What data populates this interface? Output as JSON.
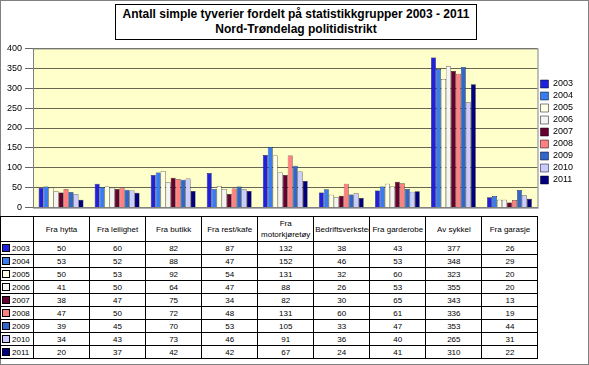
{
  "chart_data": {
    "type": "bar",
    "title": "Antall simple tyverier fordelt på statistikkgrupper 2003 - 2011",
    "subtitle": "Nord-Trøndelag politidistrikt",
    "categories": [
      "Fra hytta",
      "Fra leilighet",
      "Fra butikk",
      "Fra rest/kafe",
      "Fra motorkjøretøy",
      "Bedriftsverksted",
      "Fra garderobe",
      "Av sykkel",
      "Fra garasje"
    ],
    "series": [
      {
        "name": "2003",
        "color": "#2020e0",
        "values": [
          50,
          60,
          82,
          87,
          132,
          38,
          43,
          377,
          26
        ]
      },
      {
        "name": "2004",
        "color": "#3a7cf0",
        "values": [
          53,
          52,
          88,
          47,
          152,
          46,
          53,
          348,
          29
        ]
      },
      {
        "name": "2005",
        "color": "#ffffe6",
        "values": [
          50,
          53,
          92,
          54,
          131,
          32,
          60,
          323,
          20
        ]
      },
      {
        "name": "2006",
        "color": "#f4f4f4",
        "values": [
          41,
          50,
          64,
          47,
          88,
          26,
          53,
          355,
          20
        ]
      },
      {
        "name": "2007",
        "color": "#660033",
        "values": [
          38,
          47,
          75,
          34,
          82,
          30,
          65,
          343,
          13
        ]
      },
      {
        "name": "2008",
        "color": "#ff8080",
        "values": [
          47,
          50,
          72,
          48,
          131,
          60,
          61,
          336,
          19
        ]
      },
      {
        "name": "2009",
        "color": "#3366cc",
        "values": [
          39,
          45,
          70,
          53,
          105,
          33,
          47,
          353,
          44
        ]
      },
      {
        "name": "2010",
        "color": "#ccccff",
        "values": [
          34,
          43,
          73,
          46,
          91,
          36,
          40,
          265,
          31
        ]
      },
      {
        "name": "2011",
        "color": "#000080",
        "values": [
          20,
          37,
          42,
          42,
          67,
          24,
          41,
          310,
          22
        ]
      }
    ],
    "ylim": [
      0,
      400
    ],
    "yticks": [
      0,
      50,
      100,
      150,
      200,
      250,
      300,
      350,
      400
    ],
    "grid": true,
    "legend": "right",
    "tick_labels": "y"
  }
}
